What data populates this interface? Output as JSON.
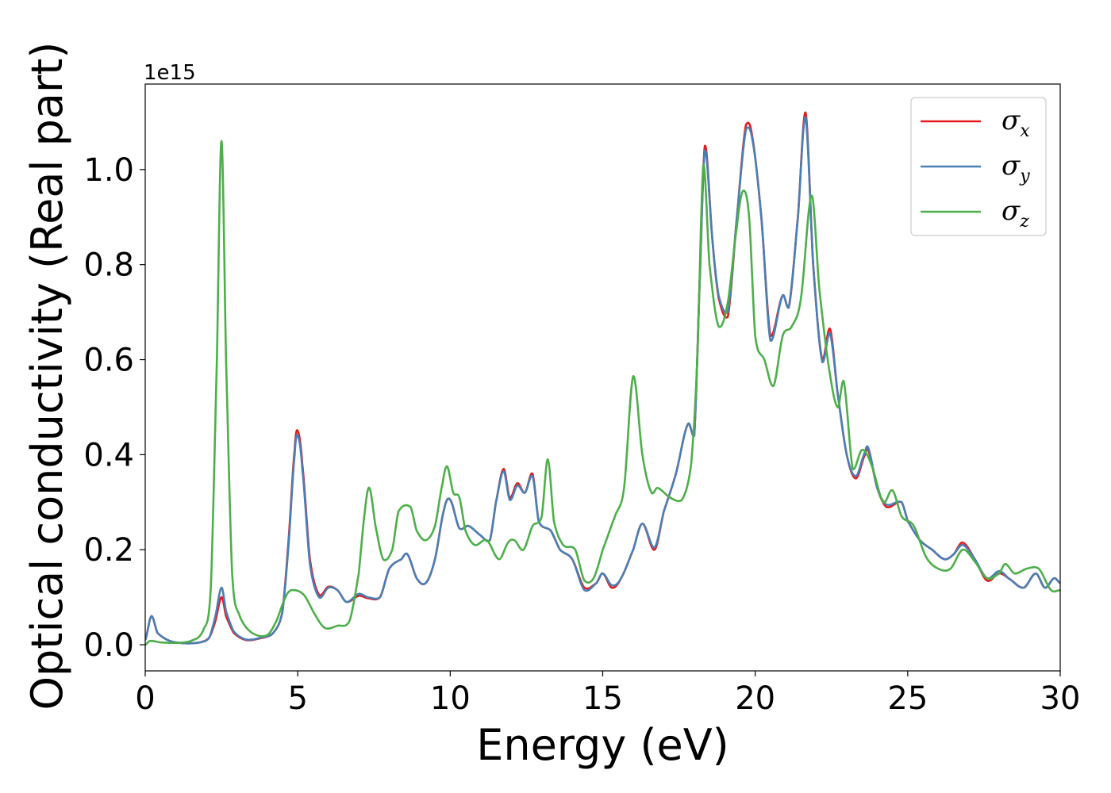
{
  "chart_data": {
    "type": "line",
    "title": "",
    "xlabel": "Energy (eV)",
    "ylabel": "Optical conductivity (Real part)",
    "y_offset_label": "1e15",
    "xlim": [
      0,
      30
    ],
    "ylim": [
      -0.055,
      1.18
    ],
    "x_ticks": [
      0,
      5,
      10,
      15,
      20,
      25,
      30
    ],
    "y_ticks": [
      0.0,
      0.2,
      0.4,
      0.6,
      0.8,
      1.0
    ],
    "x_tick_labels": [
      "0",
      "5",
      "10",
      "15",
      "20",
      "25",
      "30"
    ],
    "y_tick_labels": [
      "0.0",
      "0.2",
      "0.4",
      "0.6",
      "0.8",
      "1.0"
    ],
    "grid": false,
    "legend_position": "top-right",
    "series": [
      {
        "name": "σx",
        "legend_symbol": "σ",
        "legend_sub": "x",
        "color": "#e41a1c",
        "points": [
          [
            0,
            0.01
          ],
          [
            0.2,
            0.06
          ],
          [
            0.4,
            0.025
          ],
          [
            0.8,
            0.008
          ],
          [
            1.3,
            0.003
          ],
          [
            1.8,
            0.005
          ],
          [
            2.1,
            0.015
          ],
          [
            2.3,
            0.05
          ],
          [
            2.5,
            0.1
          ],
          [
            2.65,
            0.06
          ],
          [
            2.9,
            0.025
          ],
          [
            3.3,
            0.01
          ],
          [
            3.8,
            0.014
          ],
          [
            4.2,
            0.025
          ],
          [
            4.5,
            0.07
          ],
          [
            4.7,
            0.22
          ],
          [
            4.9,
            0.41
          ],
          [
            5.0,
            0.45
          ],
          [
            5.15,
            0.38
          ],
          [
            5.4,
            0.18
          ],
          [
            5.7,
            0.105
          ],
          [
            6.0,
            0.122
          ],
          [
            6.3,
            0.115
          ],
          [
            6.6,
            0.09
          ],
          [
            7.0,
            0.103
          ],
          [
            7.3,
            0.098
          ],
          [
            7.7,
            0.1
          ],
          [
            8.0,
            0.16
          ],
          [
            8.4,
            0.18
          ],
          [
            8.6,
            0.19
          ],
          [
            8.9,
            0.14
          ],
          [
            9.2,
            0.13
          ],
          [
            9.5,
            0.18
          ],
          [
            9.8,
            0.285
          ],
          [
            10.0,
            0.305
          ],
          [
            10.3,
            0.245
          ],
          [
            10.6,
            0.25
          ],
          [
            11.0,
            0.23
          ],
          [
            11.3,
            0.22
          ],
          [
            11.5,
            0.3
          ],
          [
            11.75,
            0.37
          ],
          [
            11.95,
            0.31
          ],
          [
            12.2,
            0.34
          ],
          [
            12.45,
            0.32
          ],
          [
            12.7,
            0.36
          ],
          [
            12.9,
            0.26
          ],
          [
            13.3,
            0.24
          ],
          [
            13.6,
            0.2
          ],
          [
            14.0,
            0.18
          ],
          [
            14.4,
            0.12
          ],
          [
            14.8,
            0.13
          ],
          [
            15.0,
            0.15
          ],
          [
            15.3,
            0.12
          ],
          [
            15.6,
            0.14
          ],
          [
            16.0,
            0.2
          ],
          [
            16.3,
            0.255
          ],
          [
            16.7,
            0.2
          ],
          [
            17.0,
            0.28
          ],
          [
            17.4,
            0.36
          ],
          [
            17.8,
            0.465
          ],
          [
            18.0,
            0.44
          ],
          [
            18.2,
            0.8
          ],
          [
            18.35,
            1.05
          ],
          [
            18.6,
            0.85
          ],
          [
            18.8,
            0.73
          ],
          [
            19.1,
            0.69
          ],
          [
            19.4,
            0.9
          ],
          [
            19.7,
            1.095
          ],
          [
            19.9,
            1.07
          ],
          [
            20.2,
            0.9
          ],
          [
            20.5,
            0.65
          ],
          [
            20.9,
            0.735
          ],
          [
            21.1,
            0.71
          ],
          [
            21.4,
            0.9
          ],
          [
            21.65,
            1.12
          ],
          [
            21.9,
            0.8
          ],
          [
            22.2,
            0.6
          ],
          [
            22.45,
            0.665
          ],
          [
            22.7,
            0.53
          ],
          [
            23.0,
            0.4
          ],
          [
            23.3,
            0.35
          ],
          [
            23.6,
            0.4
          ],
          [
            23.7,
            0.41
          ],
          [
            24.0,
            0.33
          ],
          [
            24.3,
            0.29
          ],
          [
            24.8,
            0.3
          ],
          [
            25.0,
            0.26
          ],
          [
            25.4,
            0.22
          ],
          [
            25.8,
            0.2
          ],
          [
            26.2,
            0.18
          ],
          [
            26.5,
            0.19
          ],
          [
            26.8,
            0.215
          ],
          [
            27.2,
            0.18
          ],
          [
            27.6,
            0.135
          ],
          [
            28.0,
            0.15
          ],
          [
            28.3,
            0.14
          ],
          [
            28.8,
            0.12
          ],
          [
            29.2,
            0.15
          ],
          [
            29.5,
            0.12
          ],
          [
            29.8,
            0.14
          ],
          [
            30.0,
            0.13
          ]
        ]
      },
      {
        "name": "σy",
        "legend_symbol": "σ",
        "legend_sub": "y",
        "color": "#4a7fb5",
        "points": [
          [
            0,
            0.01
          ],
          [
            0.2,
            0.06
          ],
          [
            0.4,
            0.025
          ],
          [
            0.8,
            0.008
          ],
          [
            1.3,
            0.003
          ],
          [
            1.8,
            0.005
          ],
          [
            2.1,
            0.015
          ],
          [
            2.3,
            0.06
          ],
          [
            2.5,
            0.12
          ],
          [
            2.65,
            0.07
          ],
          [
            2.9,
            0.028
          ],
          [
            3.3,
            0.011
          ],
          [
            3.8,
            0.015
          ],
          [
            4.2,
            0.025
          ],
          [
            4.5,
            0.07
          ],
          [
            4.7,
            0.21
          ],
          [
            4.9,
            0.4
          ],
          [
            5.0,
            0.44
          ],
          [
            5.15,
            0.37
          ],
          [
            5.4,
            0.17
          ],
          [
            5.7,
            0.1
          ],
          [
            6.0,
            0.12
          ],
          [
            6.3,
            0.115
          ],
          [
            6.6,
            0.09
          ],
          [
            7.0,
            0.107
          ],
          [
            7.3,
            0.1
          ],
          [
            7.7,
            0.1
          ],
          [
            8.0,
            0.16
          ],
          [
            8.4,
            0.18
          ],
          [
            8.6,
            0.19
          ],
          [
            8.9,
            0.14
          ],
          [
            9.2,
            0.13
          ],
          [
            9.5,
            0.18
          ],
          [
            9.8,
            0.285
          ],
          [
            10.0,
            0.305
          ],
          [
            10.3,
            0.245
          ],
          [
            10.6,
            0.25
          ],
          [
            11.0,
            0.23
          ],
          [
            11.3,
            0.22
          ],
          [
            11.5,
            0.3
          ],
          [
            11.75,
            0.365
          ],
          [
            11.95,
            0.305
          ],
          [
            12.2,
            0.335
          ],
          [
            12.45,
            0.32
          ],
          [
            12.7,
            0.355
          ],
          [
            12.9,
            0.26
          ],
          [
            13.3,
            0.24
          ],
          [
            13.6,
            0.2
          ],
          [
            14.0,
            0.18
          ],
          [
            14.4,
            0.115
          ],
          [
            14.8,
            0.13
          ],
          [
            15.0,
            0.15
          ],
          [
            15.3,
            0.125
          ],
          [
            15.6,
            0.14
          ],
          [
            16.0,
            0.2
          ],
          [
            16.3,
            0.255
          ],
          [
            16.7,
            0.205
          ],
          [
            17.0,
            0.28
          ],
          [
            17.4,
            0.36
          ],
          [
            17.8,
            0.465
          ],
          [
            18.0,
            0.44
          ],
          [
            18.2,
            0.8
          ],
          [
            18.35,
            1.04
          ],
          [
            18.6,
            0.85
          ],
          [
            18.8,
            0.735
          ],
          [
            19.1,
            0.7
          ],
          [
            19.4,
            0.9
          ],
          [
            19.7,
            1.085
          ],
          [
            19.9,
            1.065
          ],
          [
            20.2,
            0.9
          ],
          [
            20.5,
            0.64
          ],
          [
            20.9,
            0.735
          ],
          [
            21.1,
            0.71
          ],
          [
            21.4,
            0.9
          ],
          [
            21.65,
            1.11
          ],
          [
            21.9,
            0.8
          ],
          [
            22.2,
            0.595
          ],
          [
            22.45,
            0.655
          ],
          [
            22.7,
            0.53
          ],
          [
            23.0,
            0.4
          ],
          [
            23.3,
            0.355
          ],
          [
            23.6,
            0.405
          ],
          [
            23.7,
            0.415
          ],
          [
            24.0,
            0.33
          ],
          [
            24.3,
            0.295
          ],
          [
            24.8,
            0.3
          ],
          [
            25.0,
            0.26
          ],
          [
            25.4,
            0.22
          ],
          [
            25.8,
            0.2
          ],
          [
            26.2,
            0.18
          ],
          [
            26.5,
            0.19
          ],
          [
            26.8,
            0.21
          ],
          [
            27.2,
            0.18
          ],
          [
            27.6,
            0.14
          ],
          [
            28.0,
            0.155
          ],
          [
            28.3,
            0.14
          ],
          [
            28.8,
            0.12
          ],
          [
            29.2,
            0.15
          ],
          [
            29.5,
            0.12
          ],
          [
            29.8,
            0.14
          ],
          [
            30.0,
            0.13
          ]
        ]
      },
      {
        "name": "σz",
        "legend_symbol": "σ",
        "legend_sub": "z",
        "color": "#4daf4a",
        "points": [
          [
            0,
            0.0
          ],
          [
            0.15,
            0.008
          ],
          [
            0.5,
            0.005
          ],
          [
            1.0,
            0.004
          ],
          [
            1.5,
            0.008
          ],
          [
            1.9,
            0.03
          ],
          [
            2.15,
            0.12
          ],
          [
            2.35,
            0.6
          ],
          [
            2.5,
            1.06
          ],
          [
            2.65,
            0.6
          ],
          [
            2.85,
            0.15
          ],
          [
            3.1,
            0.06
          ],
          [
            3.5,
            0.025
          ],
          [
            4.0,
            0.02
          ],
          [
            4.3,
            0.05
          ],
          [
            4.6,
            0.1
          ],
          [
            4.8,
            0.115
          ],
          [
            5.2,
            0.105
          ],
          [
            5.6,
            0.06
          ],
          [
            5.9,
            0.035
          ],
          [
            6.3,
            0.04
          ],
          [
            6.7,
            0.05
          ],
          [
            7.0,
            0.15
          ],
          [
            7.2,
            0.28
          ],
          [
            7.35,
            0.33
          ],
          [
            7.55,
            0.25
          ],
          [
            7.8,
            0.18
          ],
          [
            8.1,
            0.2
          ],
          [
            8.3,
            0.28
          ],
          [
            8.7,
            0.29
          ],
          [
            8.9,
            0.24
          ],
          [
            9.2,
            0.22
          ],
          [
            9.5,
            0.25
          ],
          [
            9.75,
            0.34
          ],
          [
            9.9,
            0.375
          ],
          [
            10.1,
            0.32
          ],
          [
            10.3,
            0.31
          ],
          [
            10.5,
            0.24
          ],
          [
            10.8,
            0.21
          ],
          [
            11.2,
            0.22
          ],
          [
            11.6,
            0.18
          ],
          [
            11.9,
            0.215
          ],
          [
            12.1,
            0.22
          ],
          [
            12.4,
            0.2
          ],
          [
            12.7,
            0.25
          ],
          [
            13.0,
            0.27
          ],
          [
            13.2,
            0.39
          ],
          [
            13.4,
            0.26
          ],
          [
            13.7,
            0.21
          ],
          [
            14.1,
            0.2
          ],
          [
            14.4,
            0.135
          ],
          [
            14.7,
            0.14
          ],
          [
            15.0,
            0.2
          ],
          [
            15.4,
            0.27
          ],
          [
            15.7,
            0.33
          ],
          [
            16.0,
            0.565
          ],
          [
            16.3,
            0.4
          ],
          [
            16.6,
            0.32
          ],
          [
            16.8,
            0.33
          ],
          [
            17.2,
            0.31
          ],
          [
            17.6,
            0.305
          ],
          [
            17.9,
            0.38
          ],
          [
            18.1,
            0.6
          ],
          [
            18.3,
            1.01
          ],
          [
            18.5,
            0.8
          ],
          [
            18.8,
            0.67
          ],
          [
            19.1,
            0.72
          ],
          [
            19.4,
            0.88
          ],
          [
            19.6,
            0.955
          ],
          [
            19.8,
            0.9
          ],
          [
            20.0,
            0.65
          ],
          [
            20.3,
            0.6
          ],
          [
            20.6,
            0.545
          ],
          [
            20.9,
            0.65
          ],
          [
            21.2,
            0.67
          ],
          [
            21.5,
            0.73
          ],
          [
            21.85,
            0.945
          ],
          [
            22.1,
            0.75
          ],
          [
            22.4,
            0.59
          ],
          [
            22.7,
            0.5
          ],
          [
            22.9,
            0.555
          ],
          [
            23.2,
            0.37
          ],
          [
            23.5,
            0.41
          ],
          [
            23.8,
            0.38
          ],
          [
            24.2,
            0.3
          ],
          [
            24.5,
            0.325
          ],
          [
            24.8,
            0.27
          ],
          [
            25.2,
            0.25
          ],
          [
            25.6,
            0.185
          ],
          [
            26.0,
            0.16
          ],
          [
            26.4,
            0.16
          ],
          [
            26.8,
            0.2
          ],
          [
            27.2,
            0.175
          ],
          [
            27.6,
            0.14
          ],
          [
            28.0,
            0.15
          ],
          [
            28.2,
            0.17
          ],
          [
            28.5,
            0.15
          ],
          [
            28.9,
            0.16
          ],
          [
            29.3,
            0.16
          ],
          [
            29.7,
            0.115
          ],
          [
            30.0,
            0.115
          ]
        ]
      }
    ]
  }
}
